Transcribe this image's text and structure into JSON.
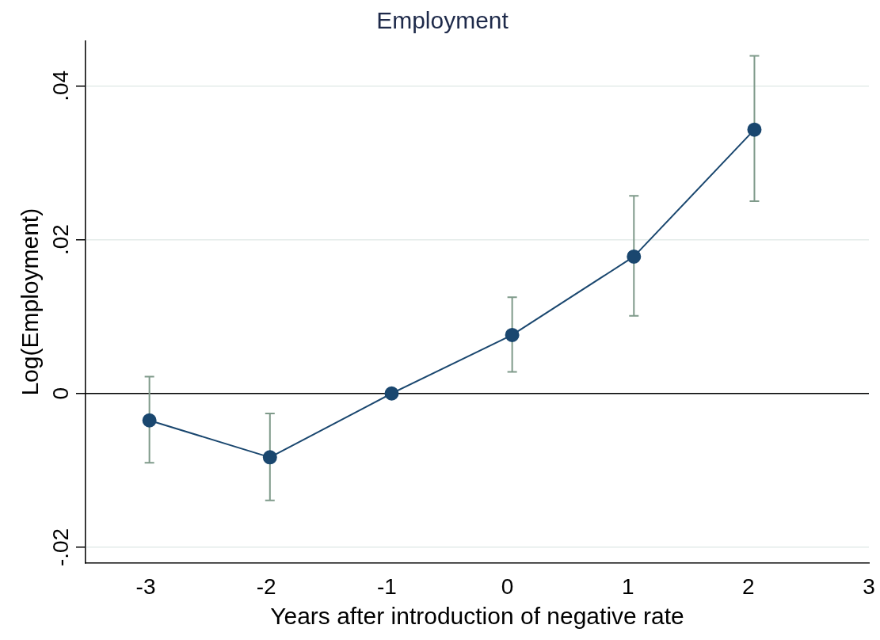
{
  "chart_data": {
    "type": "line",
    "title": "Employment",
    "xlabel": "Years after introduction of negative rate",
    "ylabel": "Log(Employment)",
    "x": [
      -2.97,
      -1.97,
      -0.96,
      0.04,
      1.05,
      2.05
    ],
    "series": [
      {
        "color": "#1a476f",
        "values": [
          -0.0035,
          -0.0083,
          0,
          0.0076,
          0.0178,
          0.0343
        ],
        "errors": [
          [
            -0.009,
            0.0022
          ],
          [
            -0.0139,
            -0.0026
          ],
          null,
          [
            0.0028,
            0.0125
          ],
          [
            0.0101,
            0.0257
          ],
          [
            0.025,
            0.0439
          ]
        ]
      }
    ],
    "xlim": [
      -3.5,
      3
    ],
    "xticks": [
      -3,
      -2,
      -1,
      0,
      1,
      2,
      3
    ],
    "ylim": [
      -0.022,
      0.0458
    ],
    "yticks": [
      {
        "value": -0.02,
        "label": "-.02"
      },
      {
        "value": 0,
        "label": "0"
      },
      {
        "value": 0.02,
        "label": ".02"
      },
      {
        "value": 0.04,
        "label": ".04"
      }
    ],
    "ref_lines": [
      {
        "axis": "y",
        "value": 0,
        "color": "#000000"
      }
    ],
    "grid": "y",
    "marker": "circle",
    "line_style": "solid",
    "legend": false
  }
}
